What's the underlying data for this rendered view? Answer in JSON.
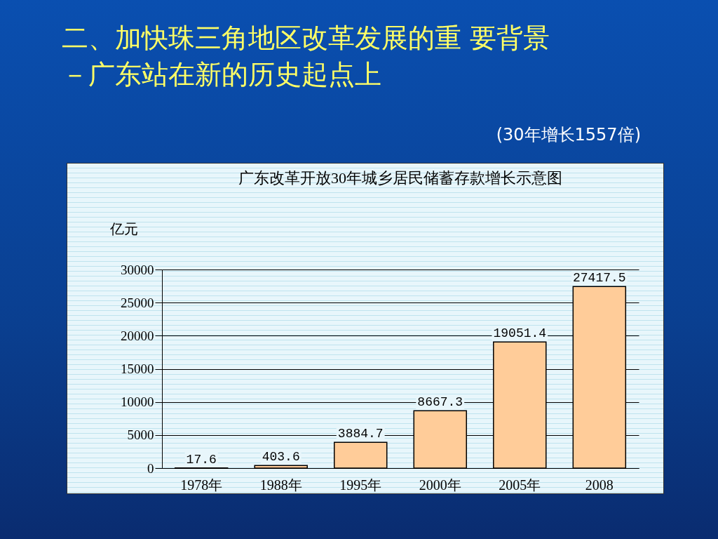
{
  "chart_data": {
    "type": "bar",
    "title": "二、加快珠三角地区改革发展的重 要背景－广东站在新的历史起点上",
    "subtitle": "(30年增长1557倍)",
    "annotations": [
      "广东改革开放30年城乡居民储蓄存款增长示意图"
    ],
    "ylabel": "亿元",
    "categories": [
      "1978年",
      "1988年",
      "1995年",
      "2000年",
      "2005年",
      "2008"
    ],
    "values": [
      17.6,
      403.6,
      3884.7,
      8667.3,
      19051.4,
      27417.5
    ],
    "color": "#ffcc99",
    "ylim": [
      0,
      30000
    ],
    "yticks": [
      0,
      5000,
      10000,
      15000,
      20000,
      25000,
      30000
    ],
    "grid": "y",
    "data_labels": true
  }
}
